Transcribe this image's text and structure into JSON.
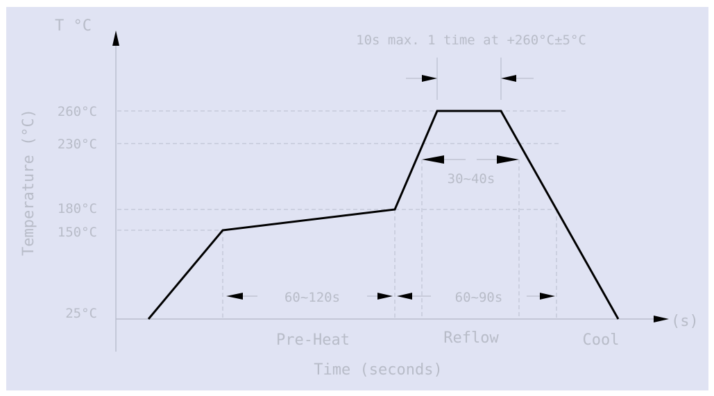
{
  "diagram": {
    "y_axis_unit": "T °C",
    "y_axis_title": "Temperature (°C)",
    "x_axis_unit": "(s)",
    "x_axis_title": "Time (seconds)",
    "peak_note": "10s max. 1 time at +260°C±5°C",
    "temperature_levels": [
      "260°C",
      "230°C",
      "180°C",
      "150°C",
      "25°C"
    ],
    "durations": {
      "above_230": "30~40s",
      "preheat": "60~120s",
      "reflow": "60~90s"
    },
    "zones": [
      "Pre-Heat",
      "Reflow",
      "Cool"
    ]
  },
  "chart_data": {
    "type": "line",
    "title": "",
    "xlabel": "Time (seconds)",
    "ylabel": "Temperature (°C)",
    "series": [
      {
        "points": [
          {
            "stage": "start",
            "temp_c": 25
          },
          {
            "stage": "preheat_start",
            "temp_c": 150
          },
          {
            "stage": "preheat_end",
            "temp_c": 180
          },
          {
            "stage": "peak_start",
            "temp_c": 260
          },
          {
            "stage": "peak_end",
            "temp_c": 260
          },
          {
            "stage": "cool_end",
            "temp_c": 25
          }
        ]
      }
    ],
    "y_ticks": [
      25,
      150,
      180,
      230,
      260
    ],
    "grid": true
  },
  "colors": {
    "background": "#e0e3f3",
    "text": "#b8bcc8",
    "curve": "#000000"
  }
}
